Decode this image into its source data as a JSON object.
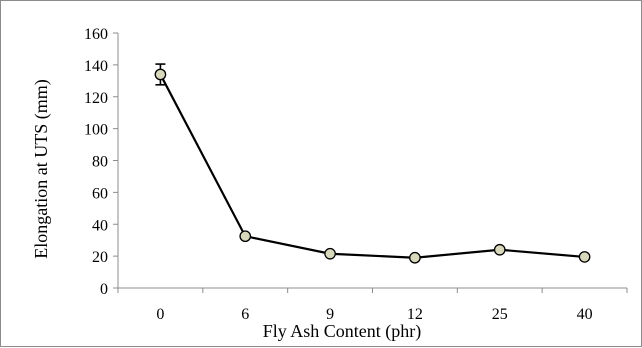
{
  "chart_data": {
    "type": "line",
    "title": "",
    "xlabel": "Fly Ash Content (phr)",
    "ylabel": "Elongation at UTS (mm)",
    "categories": [
      "0",
      "6",
      "9",
      "12",
      "25",
      "40"
    ],
    "series": [
      {
        "values": [
          134,
          32.5,
          21.5,
          19,
          24,
          19.5
        ],
        "error": [
          6.5,
          0,
          0,
          0,
          0,
          0
        ],
        "line_color": "#000000",
        "marker_fill": "#d8d8bc",
        "marker_stroke": "#000000",
        "marker": "circle"
      }
    ],
    "ylim": [
      0,
      160
    ],
    "yticks": [
      "0",
      "20",
      "40",
      "60",
      "80",
      "100",
      "120",
      "140",
      "160"
    ],
    "grid": false,
    "legend": "none"
  }
}
